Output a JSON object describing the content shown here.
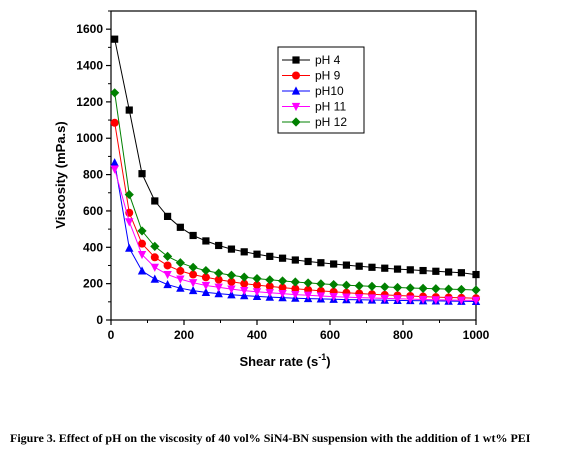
{
  "chart_data": {
    "type": "line",
    "xlabel_main": "Shear rate (s",
    "xlabel_sup": "-1",
    "xlabel_tail": ")",
    "ylabel": "Viscosity (mPa.s)",
    "xlim": [
      0,
      1000
    ],
    "ylim": [
      0,
      1700
    ],
    "x_ticks": [
      "0",
      "200",
      "400",
      "600",
      "800",
      "1000"
    ],
    "y_ticks": [
      "0",
      "200",
      "400",
      "600",
      "800",
      "1000",
      "1200",
      "1400",
      "1600"
    ],
    "x_tick_values": [
      0,
      200,
      400,
      600,
      800,
      1000
    ],
    "y_tick_values": [
      0,
      200,
      400,
      600,
      800,
      1000,
      1200,
      1400,
      1600
    ],
    "legend_position": "top-right",
    "x": [
      10,
      50,
      85,
      120,
      155,
      190,
      225,
      260,
      295,
      330,
      365,
      400,
      435,
      470,
      505,
      540,
      575,
      610,
      645,
      680,
      715,
      750,
      785,
      820,
      855,
      890,
      925,
      960,
      1000
    ],
    "series": [
      {
        "name": "pH 4",
        "color": "#000000",
        "marker": "square",
        "values": [
          1545,
          1155,
          805,
          655,
          570,
          510,
          465,
          435,
          410,
          390,
          375,
          362,
          350,
          340,
          330,
          322,
          315,
          308,
          302,
          296,
          290,
          285,
          280,
          276,
          272,
          268,
          264,
          260,
          250
        ]
      },
      {
        "name": "pH 9",
        "color": "#ff0000",
        "marker": "circle",
        "values": [
          1085,
          590,
          420,
          345,
          300,
          270,
          250,
          235,
          222,
          210,
          200,
          192,
          185,
          178,
          172,
          166,
          160,
          155,
          150,
          146,
          142,
          138,
          135,
          132,
          129,
          126,
          124,
          122,
          120
        ]
      },
      {
        "name": "pH10",
        "color": "#0000ff",
        "marker": "triangle-up",
        "values": [
          865,
          395,
          270,
          225,
          195,
          175,
          162,
          152,
          145,
          139,
          134,
          130,
          126,
          123,
          120,
          118,
          116,
          114,
          112,
          111,
          110,
          109,
          108,
          107,
          106,
          105,
          104,
          103,
          102
        ]
      },
      {
        "name": "pH 11",
        "color": "#ff00ff",
        "marker": "triangle-down",
        "values": [
          830,
          540,
          360,
          290,
          250,
          225,
          205,
          190,
          180,
          170,
          162,
          155,
          150,
          145,
          140,
          136,
          132,
          129,
          126,
          123,
          121,
          119,
          117,
          115,
          113,
          111,
          110,
          109,
          108
        ]
      },
      {
        "name": "pH 12",
        "color": "#008000",
        "marker": "diamond",
        "values": [
          1250,
          690,
          490,
          405,
          350,
          315,
          290,
          272,
          258,
          246,
          236,
          228,
          221,
          215,
          209,
          204,
          199,
          195,
          191,
          188,
          185,
          182,
          179,
          176,
          174,
          172,
          170,
          168,
          165
        ]
      }
    ]
  },
  "caption": {
    "text": "Figure 3. Effect of pH on the viscosity of 40 vol% SiN4-BN suspension with the addition of 1 wt% PEI"
  }
}
